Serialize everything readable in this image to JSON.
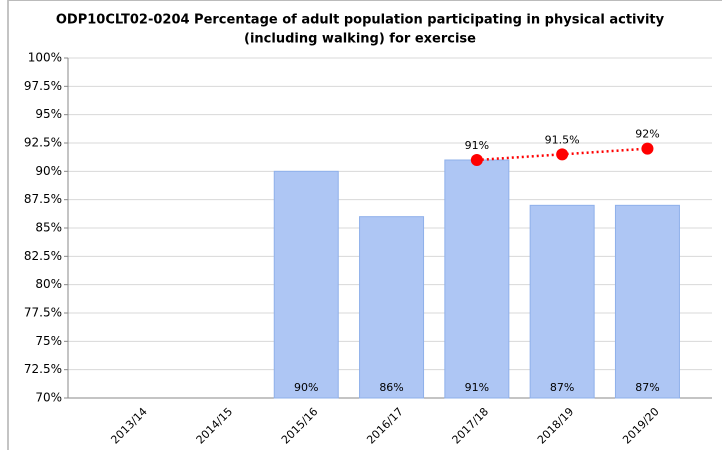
{
  "chart_data": {
    "type": "bar",
    "title": [
      "ODP10CLT02-0204 Percentage of adult population participating in physical activity",
      "(including walking) for exercise"
    ],
    "categories": [
      "2013/14",
      "2014/15",
      "2015/16",
      "2016/17",
      "2017/18",
      "2018/19",
      "2019/20"
    ],
    "series": [
      {
        "type": "bar",
        "color": "#aec6f4",
        "values": [
          null,
          null,
          90,
          86,
          91,
          87,
          87
        ],
        "value_labels": [
          null,
          null,
          "90%",
          "86%",
          "91%",
          "87%",
          "87%"
        ]
      },
      {
        "type": "line",
        "color": "#ff0000",
        "values": [
          null,
          null,
          null,
          null,
          91,
          91.5,
          92
        ],
        "value_labels": [
          null,
          null,
          null,
          null,
          "91%",
          "91.5%",
          "92%"
        ]
      }
    ],
    "ylim": [
      70,
      100
    ],
    "yticks": [
      {
        "value": 70,
        "label": "70%"
      },
      {
        "value": 72.5,
        "label": "72.5%"
      },
      {
        "value": 75,
        "label": "75%"
      },
      {
        "value": 77.5,
        "label": "77.5%"
      },
      {
        "value": 80,
        "label": "80%"
      },
      {
        "value": 82.5,
        "label": "82.5%"
      },
      {
        "value": 85,
        "label": "85%"
      },
      {
        "value": 87.5,
        "label": "87.5%"
      },
      {
        "value": 90,
        "label": "90%"
      },
      {
        "value": 92.5,
        "label": "92.5%"
      },
      {
        "value": 95,
        "label": "95%"
      },
      {
        "value": 97.5,
        "label": "97.5%"
      },
      {
        "value": 100,
        "label": "100%"
      }
    ],
    "grid": true
  }
}
